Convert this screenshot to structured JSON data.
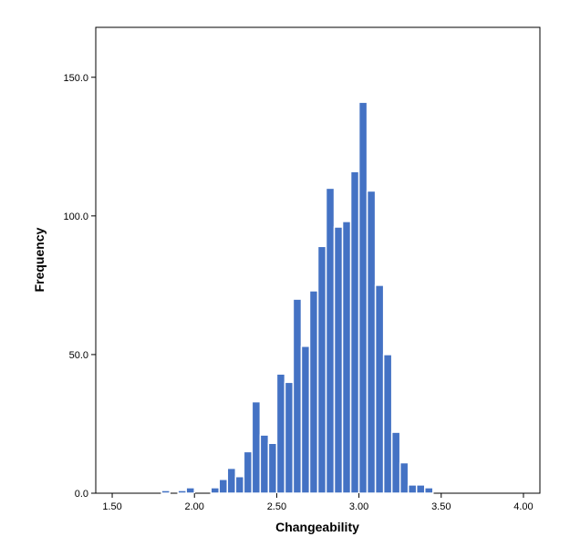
{
  "chart_data": {
    "type": "bar",
    "title": "",
    "xlabel": "Changeability",
    "ylabel": "Frequency",
    "xlim": [
      1.4,
      4.1
    ],
    "ylim": [
      0,
      168
    ],
    "bin_width": 0.05,
    "x_ticks": [
      {
        "value": 1.5,
        "label": "1.50"
      },
      {
        "value": 2.0,
        "label": "2.00"
      },
      {
        "value": 2.5,
        "label": "2.50"
      },
      {
        "value": 3.0,
        "label": "3.00"
      },
      {
        "value": 3.5,
        "label": "3.50"
      },
      {
        "value": 4.0,
        "label": "4.00"
      }
    ],
    "y_ticks": [
      {
        "value": 0,
        "label": "0.0"
      },
      {
        "value": 50,
        "label": "50.0"
      },
      {
        "value": 100,
        "label": "100.0"
      },
      {
        "value": 150,
        "label": "150.0"
      }
    ],
    "bar_color": "#4472C4",
    "bins": [
      {
        "x": 1.825,
        "value": 1
      },
      {
        "x": 1.875,
        "value": 0
      },
      {
        "x": 1.925,
        "value": 1
      },
      {
        "x": 1.975,
        "value": 2
      },
      {
        "x": 2.025,
        "value": 0
      },
      {
        "x": 2.075,
        "value": 0
      },
      {
        "x": 2.125,
        "value": 2
      },
      {
        "x": 2.175,
        "value": 5
      },
      {
        "x": 2.225,
        "value": 9
      },
      {
        "x": 2.275,
        "value": 6
      },
      {
        "x": 2.325,
        "value": 15
      },
      {
        "x": 2.375,
        "value": 33
      },
      {
        "x": 2.425,
        "value": 21
      },
      {
        "x": 2.475,
        "value": 18
      },
      {
        "x": 2.525,
        "value": 43
      },
      {
        "x": 2.575,
        "value": 40
      },
      {
        "x": 2.625,
        "value": 70
      },
      {
        "x": 2.675,
        "value": 53
      },
      {
        "x": 2.725,
        "value": 73
      },
      {
        "x": 2.775,
        "value": 89
      },
      {
        "x": 2.825,
        "value": 110
      },
      {
        "x": 2.875,
        "value": 96
      },
      {
        "x": 2.925,
        "value": 98
      },
      {
        "x": 2.975,
        "value": 116
      },
      {
        "x": 3.025,
        "value": 141
      },
      {
        "x": 3.075,
        "value": 109
      },
      {
        "x": 3.125,
        "value": 75
      },
      {
        "x": 3.175,
        "value": 50
      },
      {
        "x": 3.225,
        "value": 22
      },
      {
        "x": 3.275,
        "value": 11
      },
      {
        "x": 3.325,
        "value": 3
      },
      {
        "x": 3.375,
        "value": 3
      },
      {
        "x": 3.425,
        "value": 2
      }
    ]
  }
}
